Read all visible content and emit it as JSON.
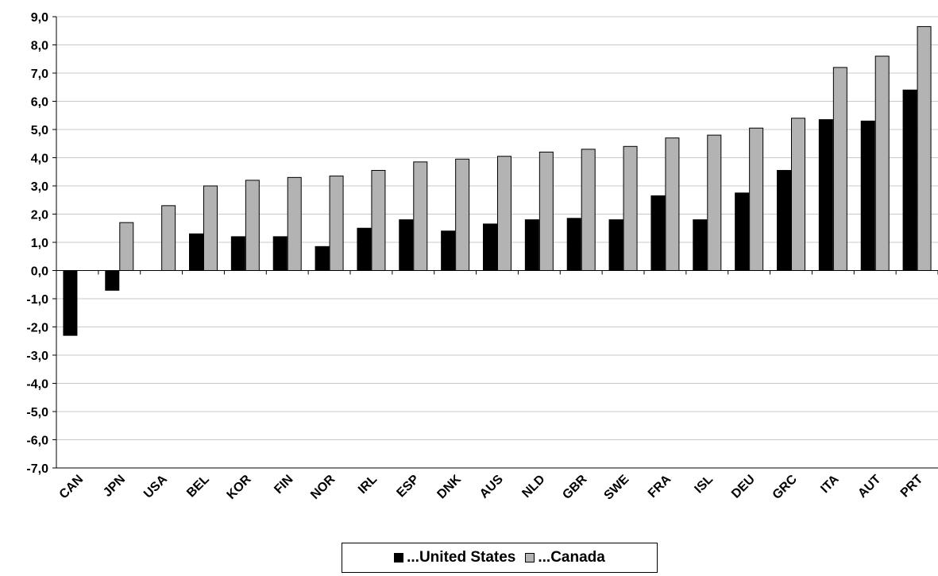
{
  "chart_data": {
    "type": "bar",
    "categories": [
      "CAN",
      "JPN",
      "USA",
      "BEL",
      "KOR",
      "FIN",
      "NOR",
      "IRL",
      "ESP",
      "DNK",
      "AUS",
      "NLD",
      "GBR",
      "SWE",
      "FRA",
      "ISL",
      "DEU",
      "GRC",
      "ITA",
      "AUT",
      "PRT"
    ],
    "series": [
      {
        "name": "...United States",
        "color": "#000000",
        "values": [
          -2.3,
          -0.7,
          0.0,
          1.3,
          1.2,
          1.2,
          0.85,
          1.5,
          1.8,
          1.4,
          1.65,
          1.8,
          1.85,
          1.8,
          2.65,
          1.8,
          2.75,
          3.55,
          5.35,
          5.3,
          6.4
        ]
      },
      {
        "name": "...Canada",
        "color": "#b3b3b3",
        "values": [
          0.0,
          1.7,
          2.3,
          3.0,
          3.2,
          3.3,
          3.35,
          3.55,
          3.85,
          3.95,
          4.05,
          4.2,
          4.3,
          4.4,
          4.7,
          4.8,
          5.05,
          5.4,
          7.2,
          7.6,
          8.65
        ]
      }
    ],
    "ylim": [
      -7,
      9
    ],
    "yticks": [
      "-7,0",
      "-6,0",
      "-5,0",
      "-4,0",
      "-3,0",
      "-2,0",
      "-1,0",
      "0,0",
      "1,0",
      "2,0",
      "3,0",
      "4,0",
      "5,0",
      "6,0",
      "7,0",
      "8,0",
      "9,0"
    ],
    "grid": true,
    "legend": "bottom-center"
  }
}
